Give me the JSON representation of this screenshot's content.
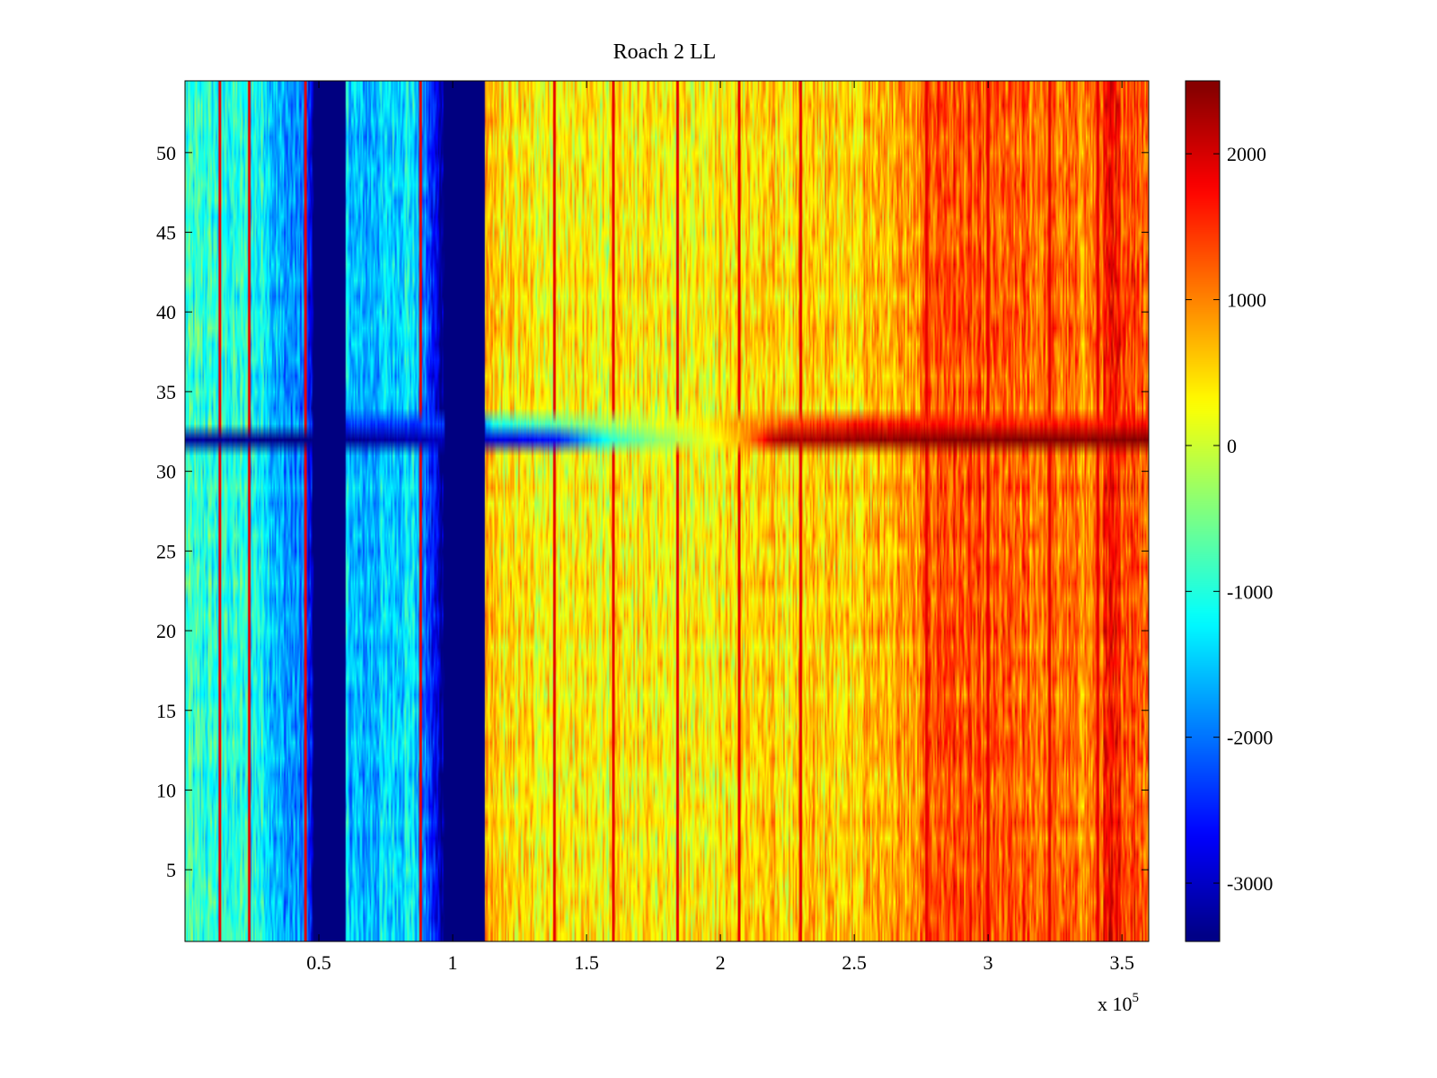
{
  "chart_data": {
    "type": "heatmap",
    "title": "Roach 2 LL",
    "xlabel": "",
    "ylabel": "",
    "x_exponent_label": "x 10",
    "x_exponent_power": "5",
    "xlim": [
      0,
      3.6
    ],
    "ylim": [
      0.5,
      54.5
    ],
    "x_ticks": [
      0.5,
      1,
      1.5,
      2,
      2.5,
      3,
      3.5
    ],
    "x_tick_labels": [
      "0.5",
      "1",
      "1.5",
      "2",
      "2.5",
      "3",
      "3.5"
    ],
    "y_ticks": [
      5,
      10,
      15,
      20,
      25,
      30,
      35,
      40,
      45,
      50
    ],
    "y_tick_labels": [
      "5",
      "10",
      "15",
      "20",
      "25",
      "30",
      "35",
      "40",
      "45",
      "50"
    ],
    "rows": 54,
    "colormap": "jet",
    "color_limits": [
      -3400,
      2500
    ],
    "colorbar_ticks": [
      2000,
      1000,
      0,
      -1000,
      -2000,
      -3000
    ],
    "colorbar_tick_labels": [
      "2000",
      "1000",
      "0",
      "-1000",
      "-2000",
      "-3000"
    ],
    "column_profile_x": [
      0.0,
      0.3,
      0.35,
      0.45,
      0.48,
      0.6,
      0.65,
      0.85,
      0.97,
      1.12,
      1.2,
      1.5,
      2.0,
      2.5,
      2.75,
      2.8,
      3.0,
      3.3,
      3.4,
      3.45,
      3.6
    ],
    "column_profile_value": [
      -900,
      -1100,
      -1700,
      -2000,
      -3400,
      -1300,
      -1700,
      -1200,
      -3400,
      600,
      400,
      300,
      400,
      600,
      900,
      1400,
      1200,
      1100,
      1000,
      1600,
      1300
    ],
    "saturated_bands": [
      {
        "x_start": 0.48,
        "x_end": 0.6,
        "value": -3400
      },
      {
        "x_start": 0.97,
        "x_end": 1.12,
        "value": -3400
      }
    ],
    "anomaly_row": 32,
    "anomaly_row_profile_x": [
      0.0,
      0.45,
      1.15,
      1.4,
      1.6,
      2.0,
      2.1,
      2.2,
      2.5,
      2.75,
      3.2,
      3.6
    ],
    "anomaly_row_profile_value": [
      -3200,
      -3400,
      -2900,
      -2500,
      -900,
      300,
      900,
      2200,
      2350,
      2450,
      2450,
      2450
    ],
    "anomaly_row_33_profile_x": [
      0.6,
      1.1,
      1.15,
      1.4,
      2.0,
      2.2,
      2.5,
      3.0,
      3.6
    ],
    "anomaly_row_33_profile_value": [
      -2300,
      -2300,
      -1000,
      -600,
      500,
      1200,
      1700,
      1600,
      1700
    ],
    "vertical_streaks": [
      0.13,
      0.24,
      0.45,
      0.88,
      1.38,
      1.6,
      1.84,
      2.07,
      2.3,
      2.77,
      3.0,
      3.23,
      3.41
    ]
  }
}
